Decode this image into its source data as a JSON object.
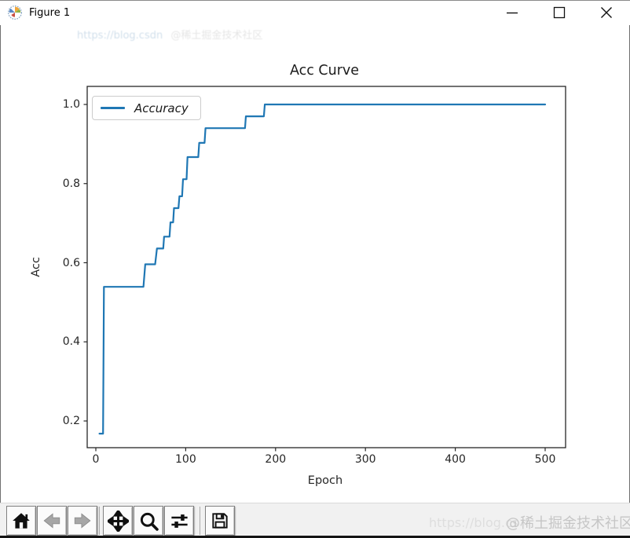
{
  "titlebar": {
    "title": "Figure 1",
    "icon": "matplotlib-logo-icon",
    "controls": [
      "minimize",
      "maximize",
      "close"
    ]
  },
  "watermark": {
    "top_text_url": "https://blog.csdn",
    "top_text_badge": "@稀土掘金技术社区",
    "bottom_url": "https://blog.cs",
    "bottom_badge": "@稀土掘金技术社区"
  },
  "toolbar": {
    "buttons": [
      {
        "name": "home",
        "icon": "home-icon",
        "enabled": true
      },
      {
        "name": "back",
        "icon": "arrow-left-icon",
        "enabled": false
      },
      {
        "name": "forward",
        "icon": "arrow-right-icon",
        "enabled": false
      },
      {
        "name": "pan",
        "icon": "pan-arrows-icon",
        "enabled": true
      },
      {
        "name": "zoom-to-rect",
        "icon": "magnifier-icon",
        "enabled": true
      },
      {
        "name": "configure-subplots",
        "icon": "sliders-icon",
        "enabled": true
      },
      {
        "name": "save",
        "icon": "floppy-disk-icon",
        "enabled": true
      }
    ]
  },
  "chart_data": {
    "type": "line",
    "title": "Acc Curve",
    "xlabel": "Epoch",
    "ylabel": "Acc",
    "x_ticks": [
      0,
      100,
      200,
      300,
      400,
      500
    ],
    "x_tick_labels": [
      "0",
      "100",
      "200",
      "300",
      "400",
      "500"
    ],
    "y_ticks": [
      0.2,
      0.4,
      0.6,
      0.8,
      1.0
    ],
    "y_tick_labels": [
      "0.2",
      "0.4",
      "0.6",
      "0.8",
      "1.0"
    ],
    "xlim": [
      -10,
      523
    ],
    "ylim": [
      0.13,
      1.05
    ],
    "grid": false,
    "legend": {
      "position": "upper-left",
      "entries": [
        {
          "label": "Accuracy",
          "color": "#1f77b4",
          "style": "italic"
        }
      ]
    },
    "series": [
      {
        "name": "Accuracy",
        "color": "#1f77b4",
        "points": [
          [
            4,
            0.168
          ],
          [
            8,
            0.168
          ],
          [
            9,
            0.539
          ],
          [
            53,
            0.539
          ],
          [
            55,
            0.596
          ],
          [
            66,
            0.596
          ],
          [
            68,
            0.636
          ],
          [
            75,
            0.636
          ],
          [
            76,
            0.666
          ],
          [
            82,
            0.666
          ],
          [
            83,
            0.702
          ],
          [
            86,
            0.702
          ],
          [
            87,
            0.738
          ],
          [
            92,
            0.738
          ],
          [
            93,
            0.768
          ],
          [
            96,
            0.768
          ],
          [
            97,
            0.811
          ],
          [
            101,
            0.811
          ],
          [
            102,
            0.867
          ],
          [
            114,
            0.867
          ],
          [
            115,
            0.903
          ],
          [
            121,
            0.903
          ],
          [
            122,
            0.94
          ],
          [
            166,
            0.94
          ],
          [
            167,
            0.97
          ],
          [
            187,
            0.97
          ],
          [
            188,
            1.0
          ],
          [
            500,
            1.0
          ]
        ]
      }
    ]
  },
  "colors": {
    "line": "#1f77b4",
    "axis": "#262626",
    "canvas_bg": "#ffffff",
    "toolbar_bg": "#f1f1f1"
  }
}
